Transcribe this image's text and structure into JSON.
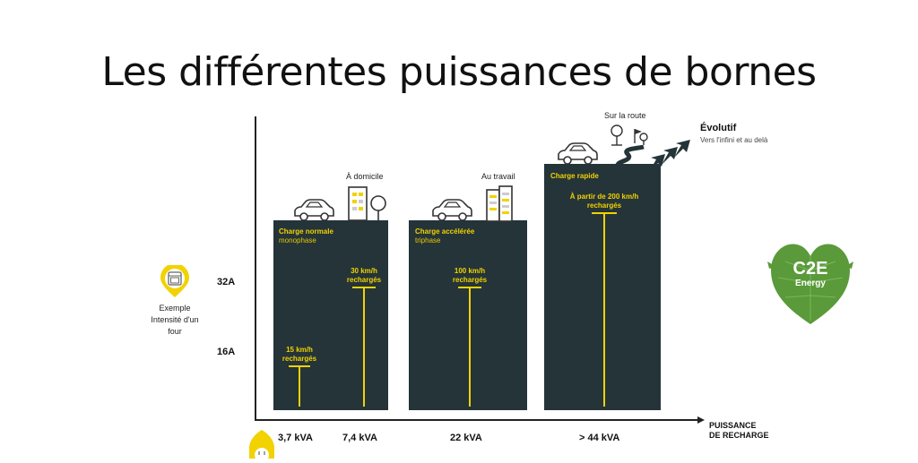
{
  "title": "Les différentes puissances de bornes",
  "y_axis": {
    "amp_high": "32A",
    "amp_low": "16A",
    "example": "Exemple\nIntensité d'un\nfour"
  },
  "x_axis": {
    "title_line1": "PUISSANCE",
    "title_line2": "DE RECHARGE",
    "ticks": [
      "3,7 kVA",
      "7,4 kVA",
      "22 kVA",
      "> 44 kVA"
    ]
  },
  "blocks": {
    "home": {
      "place": "À domicile",
      "label": "Charge normale",
      "sub": "monophase",
      "speed_a": "15 km/h\nrechargés",
      "speed_b": "30 km/h\nrechargés"
    },
    "work": {
      "place": "Au travail",
      "label": "Charge accélérée",
      "sub": "triphase",
      "speed": "100 km/h\nrechargés"
    },
    "road": {
      "place": "Sur la route",
      "label": "Charge rapide",
      "speed": "À partir de 200 km/h\nrechargés"
    }
  },
  "evolutif": {
    "title": "Évolutif",
    "sub": "Vers l'infini et au delà"
  },
  "logo": {
    "line1": "C2E",
    "line2": "Energy"
  },
  "colors": {
    "bar": "#243439",
    "accent": "#f2d200",
    "logo": "#5a9a3a"
  }
}
